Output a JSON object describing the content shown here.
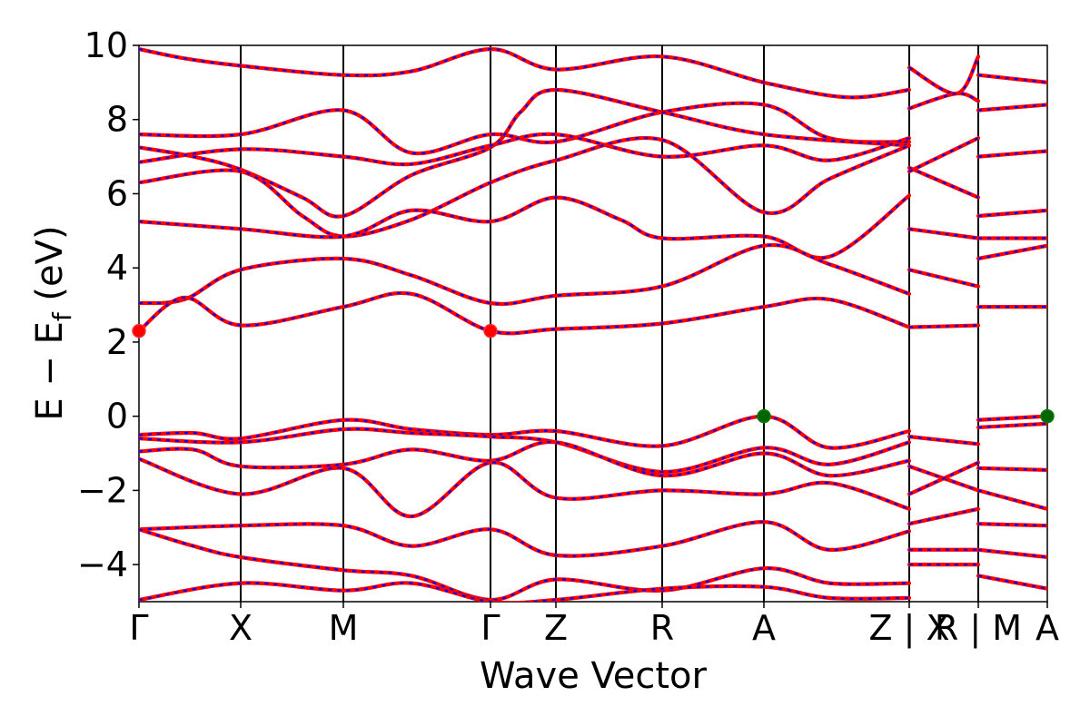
{
  "chart_data": {
    "type": "line",
    "xlabel": "Wave Vector",
    "ylabel_main": "E − E",
    "ylabel_sub": "f",
    "ylabel_unit": " (eV)",
    "ylim": [
      -5,
      10
    ],
    "yticks": [
      10,
      8,
      6,
      4,
      2,
      0,
      -2,
      -4
    ],
    "ytick_labels": [
      "10",
      "8",
      "6",
      "4",
      "2",
      "0",
      "−2",
      "−4"
    ],
    "kpoints": [
      "Γ",
      "X",
      "M",
      "Γ",
      "Z",
      "R",
      "A",
      "Z | X",
      "R | M",
      "A"
    ],
    "kpath_positions": [
      0,
      0.112,
      0.225,
      0.387,
      0.459,
      0.576,
      0.688,
      0.848,
      0.924,
      1.0
    ],
    "series": [
      {
        "color": "#ff0000",
        "style": "solid"
      },
      {
        "color": "#0000ff",
        "style": "dashed"
      }
    ],
    "bands": [
      {
        "pts": [
          [
            0,
            9.9
          ],
          [
            0.05,
            9.65
          ],
          [
            0.112,
            9.45
          ],
          [
            0.225,
            9.2
          ],
          [
            0.3,
            9.3
          ],
          [
            0.387,
            9.9
          ],
          [
            0.459,
            9.35
          ],
          [
            0.576,
            9.7
          ],
          [
            0.688,
            9.0
          ],
          [
            0.78,
            8.6
          ],
          [
            0.848,
            8.8
          ]
        ]
      },
      {
        "pts": [
          [
            0,
            7.6
          ],
          [
            0.112,
            7.6
          ],
          [
            0.225,
            8.25
          ],
          [
            0.3,
            7.1
          ],
          [
            0.387,
            7.6
          ],
          [
            0.459,
            7.4
          ],
          [
            0.576,
            8.2
          ],
          [
            0.688,
            8.4
          ],
          [
            0.76,
            7.5
          ],
          [
            0.848,
            7.4
          ]
        ]
      },
      {
        "pts": [
          [
            0,
            7.25
          ],
          [
            0.06,
            7.0
          ],
          [
            0.112,
            6.65
          ],
          [
            0.18,
            5.9
          ],
          [
            0.225,
            5.4
          ],
          [
            0.3,
            6.5
          ],
          [
            0.387,
            7.25
          ],
          [
            0.42,
            8.2
          ],
          [
            0.459,
            8.8
          ],
          [
            0.576,
            8.2
          ],
          [
            0.688,
            7.6
          ],
          [
            0.848,
            7.3
          ]
        ]
      },
      {
        "pts": [
          [
            0,
            6.85
          ],
          [
            0.112,
            7.2
          ],
          [
            0.225,
            7.0
          ],
          [
            0.3,
            6.8
          ],
          [
            0.387,
            7.3
          ],
          [
            0.459,
            7.6
          ],
          [
            0.576,
            7.0
          ],
          [
            0.688,
            7.3
          ],
          [
            0.76,
            6.9
          ],
          [
            0.848,
            7.5
          ]
        ]
      },
      {
        "pts": [
          [
            0,
            6.3
          ],
          [
            0.112,
            6.6
          ],
          [
            0.18,
            5.4
          ],
          [
            0.225,
            4.85
          ],
          [
            0.3,
            5.3
          ],
          [
            0.387,
            6.3
          ],
          [
            0.459,
            6.9
          ],
          [
            0.576,
            7.45
          ],
          [
            0.688,
            5.5
          ],
          [
            0.76,
            6.4
          ],
          [
            0.848,
            7.3
          ]
        ]
      },
      {
        "pts": [
          [
            0,
            5.25
          ],
          [
            0.112,
            5.05
          ],
          [
            0.225,
            4.85
          ],
          [
            0.3,
            5.55
          ],
          [
            0.387,
            5.25
          ],
          [
            0.459,
            5.9
          ],
          [
            0.53,
            5.3
          ],
          [
            0.576,
            4.8
          ],
          [
            0.688,
            4.85
          ],
          [
            0.76,
            4.3
          ],
          [
            0.848,
            5.95
          ]
        ]
      },
      {
        "pts": [
          [
            0,
            3.05
          ],
          [
            0.05,
            3.15
          ],
          [
            0.112,
            3.95
          ],
          [
            0.225,
            4.25
          ],
          [
            0.3,
            3.8
          ],
          [
            0.387,
            3.05
          ],
          [
            0.459,
            3.25
          ],
          [
            0.576,
            3.5
          ],
          [
            0.688,
            4.6
          ],
          [
            0.76,
            4.1
          ],
          [
            0.848,
            3.3
          ]
        ]
      },
      {
        "pts": [
          [
            0,
            2.3
          ],
          [
            0.05,
            3.2
          ],
          [
            0.112,
            2.45
          ],
          [
            0.225,
            2.95
          ],
          [
            0.3,
            3.3
          ],
          [
            0.387,
            2.3
          ],
          [
            0.459,
            2.35
          ],
          [
            0.576,
            2.5
          ],
          [
            0.688,
            2.95
          ],
          [
            0.76,
            3.15
          ],
          [
            0.848,
            2.4
          ]
        ]
      },
      {
        "pts": [
          [
            0,
            -0.5
          ],
          [
            0.06,
            -0.45
          ],
          [
            0.112,
            -0.6
          ],
          [
            0.225,
            -0.1
          ],
          [
            0.3,
            -0.35
          ],
          [
            0.387,
            -0.5
          ],
          [
            0.459,
            -0.4
          ],
          [
            0.576,
            -0.8
          ],
          [
            0.688,
            0.0
          ],
          [
            0.76,
            -0.85
          ],
          [
            0.848,
            -0.4
          ]
        ]
      },
      {
        "pts": [
          [
            0,
            -0.6
          ],
          [
            0.112,
            -0.7
          ],
          [
            0.225,
            -0.35
          ],
          [
            0.3,
            -0.45
          ],
          [
            0.387,
            -0.55
          ],
          [
            0.459,
            -0.7
          ],
          [
            0.576,
            -1.5
          ],
          [
            0.688,
            -0.85
          ],
          [
            0.76,
            -1.3
          ],
          [
            0.848,
            -0.7
          ]
        ]
      },
      {
        "pts": [
          [
            0,
            -0.95
          ],
          [
            0.06,
            -0.9
          ],
          [
            0.112,
            -1.35
          ],
          [
            0.225,
            -1.3
          ],
          [
            0.3,
            -0.9
          ],
          [
            0.387,
            -1.2
          ],
          [
            0.459,
            -0.7
          ],
          [
            0.576,
            -1.6
          ],
          [
            0.688,
            -1.0
          ],
          [
            0.76,
            -1.6
          ],
          [
            0.848,
            -1.2
          ]
        ]
      },
      {
        "pts": [
          [
            0,
            -1.15
          ],
          [
            0.112,
            -2.1
          ],
          [
            0.225,
            -1.4
          ],
          [
            0.3,
            -2.7
          ],
          [
            0.387,
            -1.25
          ],
          [
            0.459,
            -2.2
          ],
          [
            0.576,
            -2.0
          ],
          [
            0.688,
            -2.1
          ],
          [
            0.76,
            -1.8
          ],
          [
            0.848,
            -2.5
          ]
        ]
      },
      {
        "pts": [
          [
            0,
            -3.05
          ],
          [
            0.112,
            -2.95
          ],
          [
            0.225,
            -2.95
          ],
          [
            0.3,
            -3.5
          ],
          [
            0.387,
            -3.05
          ],
          [
            0.459,
            -3.75
          ],
          [
            0.576,
            -3.5
          ],
          [
            0.688,
            -2.85
          ],
          [
            0.76,
            -3.6
          ],
          [
            0.848,
            -3.1
          ]
        ]
      },
      {
        "pts": [
          [
            0,
            -3.05
          ],
          [
            0.06,
            -3.5
          ],
          [
            0.112,
            -3.8
          ],
          [
            0.225,
            -4.15
          ],
          [
            0.3,
            -4.3
          ],
          [
            0.387,
            -4.95
          ],
          [
            0.459,
            -4.4
          ],
          [
            0.576,
            -4.7
          ],
          [
            0.688,
            -4.1
          ],
          [
            0.76,
            -4.5
          ],
          [
            0.848,
            -4.5
          ]
        ]
      },
      {
        "pts": [
          [
            0,
            -4.95
          ],
          [
            0.112,
            -4.5
          ],
          [
            0.225,
            -4.7
          ],
          [
            0.3,
            -4.5
          ],
          [
            0.387,
            -5.0
          ],
          [
            0.459,
            -4.95
          ],
          [
            0.576,
            -4.65
          ],
          [
            0.688,
            -4.6
          ],
          [
            0.76,
            -4.9
          ],
          [
            0.848,
            -4.9
          ]
        ]
      },
      {
        "pts": [
          [
            0.848,
            9.4
          ],
          [
            0.9,
            8.7
          ],
          [
            0.924,
            9.7
          ]
        ]
      },
      {
        "pts": [
          [
            0.848,
            8.3
          ],
          [
            0.9,
            8.7
          ],
          [
            0.924,
            8.5
          ]
        ]
      },
      {
        "pts": [
          [
            0.848,
            6.7
          ],
          [
            0.924,
            5.9
          ]
        ]
      },
      {
        "pts": [
          [
            0.848,
            6.6
          ],
          [
            0.924,
            7.5
          ]
        ]
      },
      {
        "pts": [
          [
            0.848,
            5.05
          ],
          [
            0.924,
            4.8
          ]
        ]
      },
      {
        "pts": [
          [
            0.848,
            3.95
          ],
          [
            0.924,
            3.5
          ]
        ]
      },
      {
        "pts": [
          [
            0.848,
            2.4
          ],
          [
            0.924,
            2.45
          ]
        ]
      },
      {
        "pts": [
          [
            0.848,
            -0.55
          ],
          [
            0.924,
            -0.75
          ]
        ]
      },
      {
        "pts": [
          [
            0.848,
            -1.35
          ],
          [
            0.924,
            -2.0
          ]
        ]
      },
      {
        "pts": [
          [
            0.848,
            -2.1
          ],
          [
            0.924,
            -1.25
          ]
        ]
      },
      {
        "pts": [
          [
            0.848,
            -2.9
          ],
          [
            0.924,
            -2.5
          ]
        ]
      },
      {
        "pts": [
          [
            0.848,
            -3.6
          ],
          [
            0.924,
            -3.6
          ]
        ]
      },
      {
        "pts": [
          [
            0.848,
            -4.0
          ],
          [
            0.924,
            -4.0
          ]
        ]
      },
      {
        "pts": [
          [
            0.924,
            9.2
          ],
          [
            1.0,
            9.0
          ]
        ]
      },
      {
        "pts": [
          [
            0.924,
            8.25
          ],
          [
            1.0,
            8.4
          ]
        ]
      },
      {
        "pts": [
          [
            0.924,
            7.0
          ],
          [
            1.0,
            7.15
          ]
        ]
      },
      {
        "pts": [
          [
            0.924,
            5.4
          ],
          [
            1.0,
            5.55
          ]
        ]
      },
      {
        "pts": [
          [
            0.924,
            4.8
          ],
          [
            1.0,
            4.8
          ]
        ]
      },
      {
        "pts": [
          [
            0.924,
            4.25
          ],
          [
            1.0,
            4.6
          ]
        ]
      },
      {
        "pts": [
          [
            0.924,
            2.95
          ],
          [
            1.0,
            2.95
          ]
        ]
      },
      {
        "pts": [
          [
            0.924,
            -0.1
          ],
          [
            1.0,
            0.0
          ]
        ]
      },
      {
        "pts": [
          [
            0.924,
            -0.3
          ],
          [
            1.0,
            -0.2
          ]
        ]
      },
      {
        "pts": [
          [
            0.924,
            -1.4
          ],
          [
            1.0,
            -1.45
          ]
        ]
      },
      {
        "pts": [
          [
            0.924,
            -2.0
          ],
          [
            1.0,
            -2.5
          ]
        ]
      },
      {
        "pts": [
          [
            0.924,
            -2.9
          ],
          [
            1.0,
            -2.95
          ]
        ]
      },
      {
        "pts": [
          [
            0.924,
            -3.6
          ],
          [
            1.0,
            -3.8
          ]
        ]
      },
      {
        "pts": [
          [
            0.924,
            -4.3
          ],
          [
            1.0,
            -4.65
          ]
        ]
      }
    ],
    "markers": [
      {
        "x": 0,
        "y": 2.3,
        "color": "#ff0000"
      },
      {
        "x": 0.387,
        "y": 2.3,
        "color": "#ff0000"
      },
      {
        "x": 0.688,
        "y": 0.0,
        "color": "#006400"
      },
      {
        "x": 1.0,
        "y": 0.0,
        "color": "#006400"
      }
    ]
  }
}
